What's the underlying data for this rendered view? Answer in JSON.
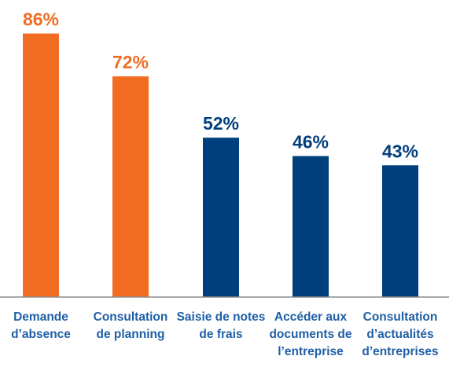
{
  "chart_data": {
    "type": "bar",
    "categories": [
      [
        "Demande",
        "d’absence"
      ],
      [
        "Consultation",
        "de planning"
      ],
      [
        "Saisie de notes",
        "de frais"
      ],
      [
        "Accéder aux",
        "documents de",
        "l’entreprise"
      ],
      [
        "Consultation",
        "d’actualités",
        "d’entreprises"
      ]
    ],
    "values": [
      86,
      72,
      52,
      46,
      43
    ],
    "value_labels": [
      "86%",
      "72%",
      "52%",
      "46%",
      "43%"
    ],
    "bar_colors": [
      "#f26c21",
      "#f26c21",
      "#003f7d",
      "#003f7d",
      "#003f7d"
    ],
    "label_colors": [
      "#f26c21",
      "#f26c21",
      "#003f7d",
      "#003f7d",
      "#003f7d"
    ],
    "category_label_color": "#1f5fa6",
    "axis_color": "#8c8c8c",
    "ylim": [
      0,
      100
    ],
    "grid": false,
    "legend": "none"
  }
}
